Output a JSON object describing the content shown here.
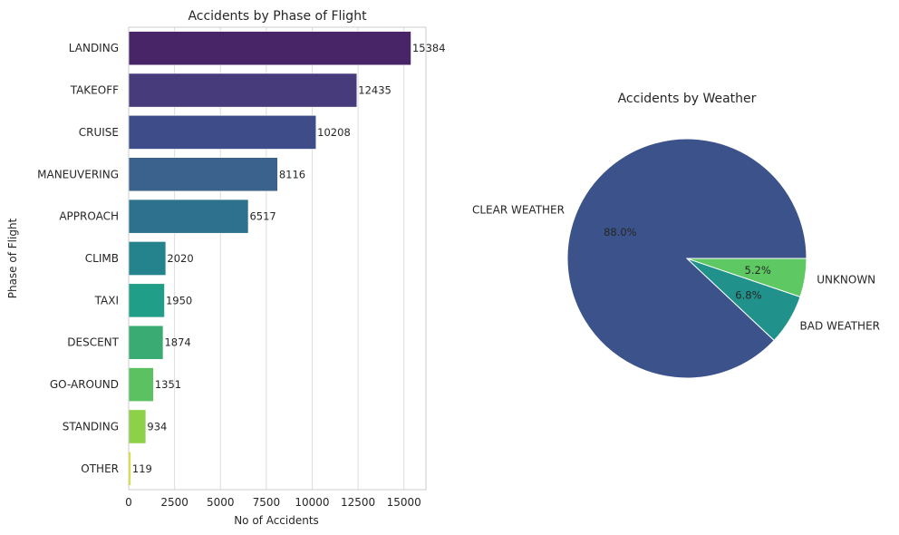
{
  "chart_data": [
    {
      "type": "bar",
      "orientation": "horizontal",
      "title": "Accidents by Phase of Flight",
      "xlabel": "No of Accidents",
      "ylabel": "Phase of Flight",
      "categories": [
        "LANDING",
        "TAKEOFF",
        "CRUISE",
        "MANEUVERING",
        "APPROACH",
        "CLIMB",
        "TAXI",
        "DESCENT",
        "GO-AROUND",
        "STANDING",
        "OTHER"
      ],
      "values": [
        15384,
        12435,
        10208,
        8116,
        6517,
        2020,
        1950,
        1874,
        1351,
        934,
        119
      ],
      "value_labels": [
        "15384",
        "12435",
        "10208",
        "8116",
        "6517",
        "2020",
        "1950",
        "1874",
        "1351",
        "934",
        "119"
      ],
      "xlim": [
        0,
        16200
      ],
      "xticks": [
        0,
        2500,
        5000,
        7500,
        10000,
        12500,
        15000
      ],
      "xtick_labels": [
        "0",
        "2500",
        "5000",
        "7500",
        "10000",
        "12500",
        "15000"
      ],
      "grid": "x",
      "colors": [
        "#482567",
        "#473b7b",
        "#3e4c8a",
        "#3b628d",
        "#2d718e",
        "#25838e",
        "#219e87",
        "#3aac73",
        "#5cc160",
        "#8cd147",
        "#dbe22b"
      ]
    },
    {
      "type": "pie",
      "title": "Accidents by Weather",
      "labels": [
        "CLEAR WEATHER",
        "BAD WEATHER",
        "UNKNOWN"
      ],
      "values": [
        88.0,
        6.8,
        5.2
      ],
      "pct_labels": [
        "88.0%",
        "6.8%",
        "5.2%"
      ],
      "colors": [
        "#3b528b",
        "#21918c",
        "#5ec962"
      ]
    }
  ]
}
